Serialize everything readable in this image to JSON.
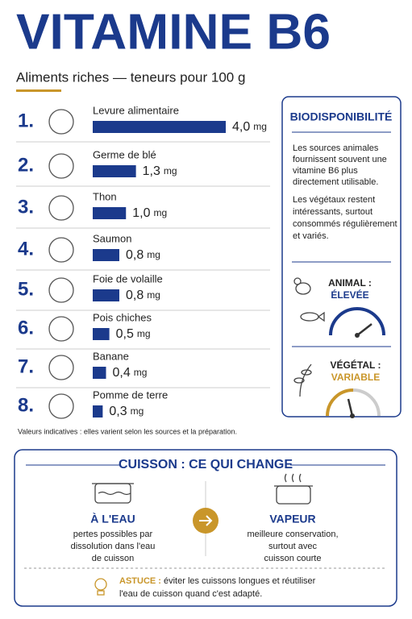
{
  "header": {
    "title": "VITAMINE B6",
    "subtitle": "Aliments riches — teneurs pour 100 g"
  },
  "chart_data": {
    "type": "bar",
    "orientation": "horizontal",
    "ranks": [
      "1.",
      "2.",
      "3.",
      "4.",
      "5.",
      "6.",
      "7.",
      "8."
    ],
    "categories": [
      "Levure alimentaire",
      "Germe de blé",
      "Thon",
      "Saumon",
      "Foie de volaille",
      "Pois chiches",
      "Banane",
      "Pomme de terre"
    ],
    "values": [
      4.0,
      1.3,
      1.0,
      0.8,
      0.8,
      0.5,
      0.4,
      0.3
    ],
    "value_labels": [
      "4,0",
      "1,3",
      "1,0",
      "0,8",
      "0,8",
      "0,5",
      "0,4",
      "0,3"
    ],
    "unit": "mg",
    "color": "#1b3a8c"
  },
  "note": "Valeurs indicatives : elles varient selon les sources et la préparation.",
  "panel": {
    "title": "BIODISPONIBILITÉ",
    "paragraphs": [
      [
        "Les sources animales",
        "fournissent souvent une",
        "vitamine B6 plus",
        "directement utilisable."
      ],
      [
        "Les végétaux restent",
        "intéressants, surtout",
        "consommés régulièrement",
        "et variés."
      ]
    ],
    "animal": {
      "label": "ANIMAL :",
      "level": "ÉLEVÉE"
    },
    "vegetal": {
      "label": "VÉGÉTAL :",
      "level": "VARIABLE"
    }
  },
  "cooking": {
    "title": "CUISSON : CE QUI CHANGE",
    "water": {
      "title": "À L'EAU",
      "lines": [
        "pertes possibles par",
        "dissolution dans l'eau",
        "de cuisson"
      ]
    },
    "steam": {
      "title": "VAPEUR",
      "lines": [
        "meilleure conservation,",
        "surtout avec",
        "cuisson courte"
      ]
    },
    "tip": {
      "label": "ASTUCE :",
      "lines": [
        "éviter les cuissons longues et réutiliser",
        "l'eau de cuisson quand c'est adapté."
      ]
    }
  }
}
